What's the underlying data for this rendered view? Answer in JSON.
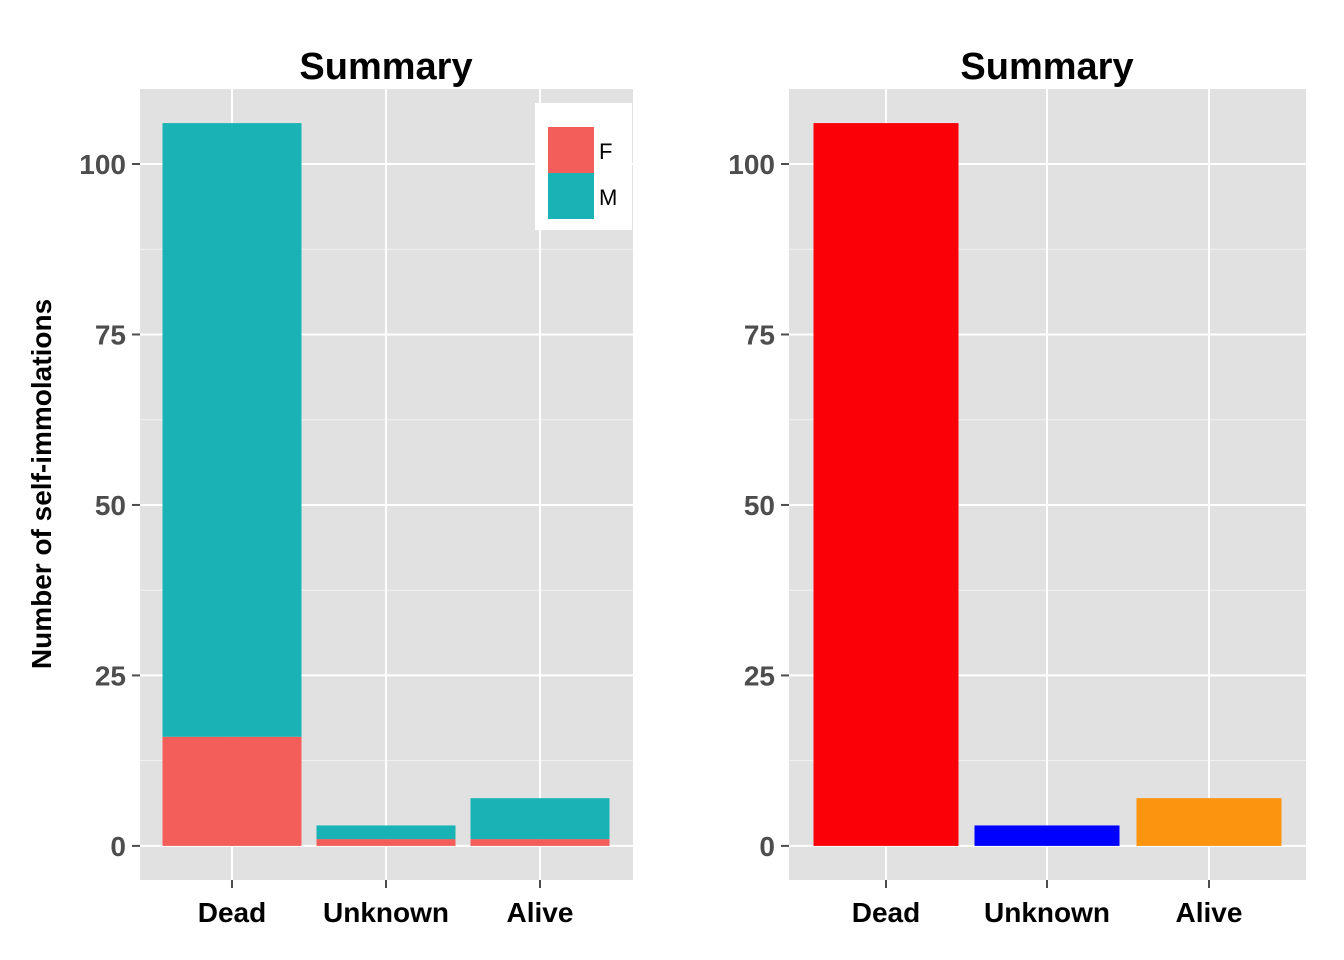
{
  "chart_data": [
    {
      "type": "bar",
      "stacked": true,
      "title": "Summary",
      "xlabel": "",
      "ylabel": "Number of self-immolations",
      "categories": [
        "Dead",
        "Unknown",
        "Alive"
      ],
      "series": [
        {
          "name": "F",
          "color": "#f35e5a",
          "values": [
            16,
            1,
            1
          ]
        },
        {
          "name": "M",
          "color": "#19b3b5",
          "values": [
            90,
            2,
            6
          ]
        }
      ],
      "ylim": [
        -5,
        111
      ],
      "yticks": [
        0,
        25,
        50,
        75,
        100
      ],
      "grid": true,
      "legend": "top-right"
    },
    {
      "type": "bar",
      "stacked": false,
      "title": "Summary",
      "xlabel": "",
      "ylabel": "",
      "categories": [
        "Dead",
        "Unknown",
        "Alive"
      ],
      "values": [
        106,
        3,
        7
      ],
      "colors": [
        "#fb0007",
        "#0000ff",
        "#fc9410"
      ],
      "ylim": [
        -5,
        111
      ],
      "yticks": [
        0,
        25,
        50,
        75,
        100
      ],
      "grid": true
    }
  ]
}
